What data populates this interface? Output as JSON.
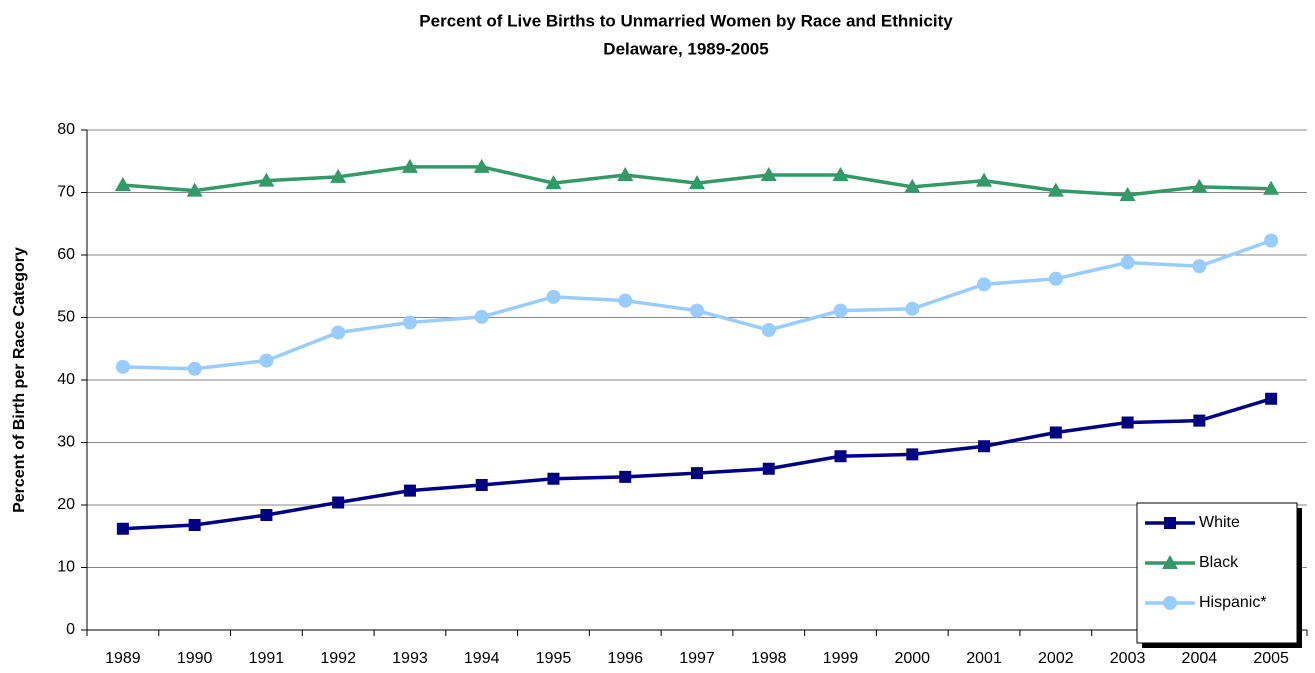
{
  "chart_data": {
    "type": "line",
    "title": "Percent of Live Births to Unmarried Women by Race and Ethnicity",
    "subtitle": "Delaware, 1989-2005",
    "y_label": "Percent of Birth per Race Category",
    "categories": [
      "1989",
      "1990",
      "1991",
      "1992",
      "1993",
      "1994",
      "1995",
      "1996",
      "1997",
      "1998",
      "1999",
      "2000",
      "2001",
      "2002",
      "2003",
      "2004",
      "2005"
    ],
    "series": [
      {
        "name": "White",
        "color": "#000080",
        "marker": "square",
        "values": [
          16.2,
          16.8,
          18.4,
          20.4,
          22.3,
          23.2,
          24.2,
          24.5,
          25.1,
          25.8,
          27.8,
          28.1,
          29.4,
          31.6,
          33.2,
          33.5,
          37.0
        ]
      },
      {
        "name": "Black",
        "color": "#339966",
        "marker": "triangle",
        "values": [
          71.2,
          70.3,
          71.9,
          72.5,
          74.1,
          74.1,
          71.5,
          72.8,
          71.5,
          72.8,
          72.8,
          70.9,
          71.9,
          70.3,
          69.6,
          70.9,
          70.6
        ]
      },
      {
        "name": "Hispanic*",
        "color": "#99ccff",
        "marker": "circle",
        "values": [
          42.1,
          41.8,
          43.1,
          47.6,
          49.2,
          50.1,
          53.3,
          52.7,
          51.1,
          48.0,
          51.1,
          51.4,
          55.3,
          56.2,
          58.8,
          58.2,
          62.3
        ]
      }
    ],
    "ylim": [
      0,
      80
    ],
    "yticks": [
      0,
      10,
      20,
      30,
      40,
      50,
      60,
      70,
      80
    ],
    "grid": true,
    "legend": "lower right"
  }
}
